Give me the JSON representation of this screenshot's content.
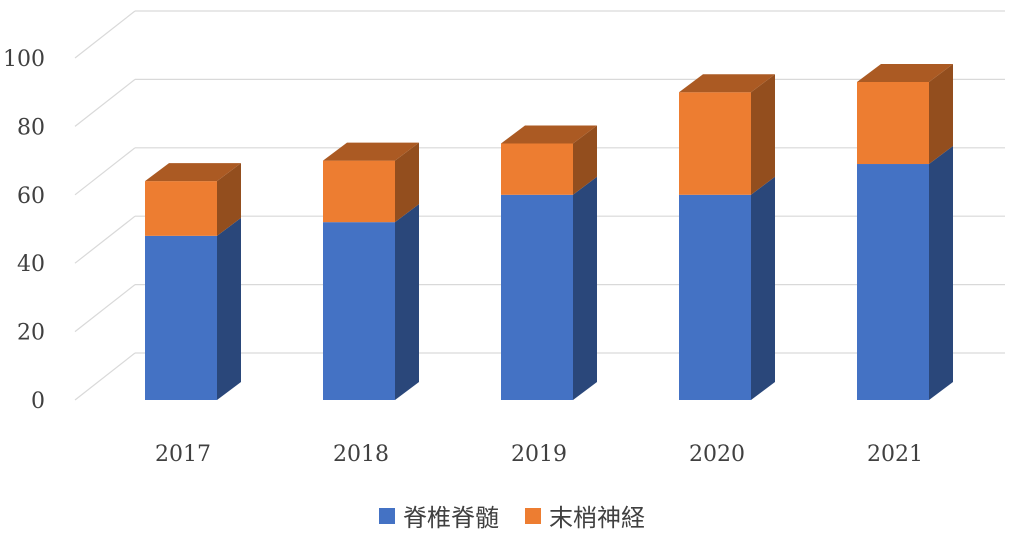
{
  "chart_data": {
    "type": "bar",
    "stacked": true,
    "style": "3d",
    "categories": [
      "2017",
      "2018",
      "2019",
      "2020",
      "2021"
    ],
    "series": [
      {
        "name": "脊椎脊髄",
        "values": [
          48,
          52,
          60,
          60,
          69
        ],
        "color": "#4472C4"
      },
      {
        "name": "末梢神経",
        "values": [
          16,
          18,
          15,
          30,
          24
        ],
        "color": "#ED7D31"
      }
    ],
    "ylim": [
      0,
      100
    ],
    "yticks": [
      "0",
      "20",
      "40",
      "60",
      "80",
      "100"
    ],
    "grid": true,
    "legend_position": "bottom",
    "title": "",
    "xlabel": "",
    "ylabel": ""
  }
}
